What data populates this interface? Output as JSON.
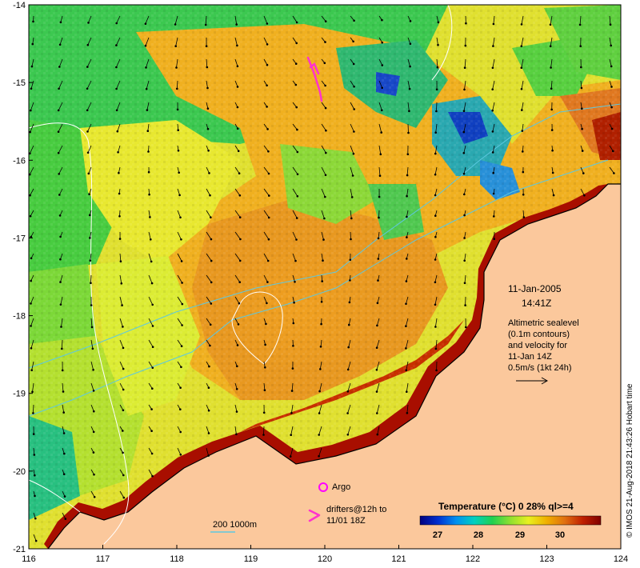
{
  "map": {
    "x_axis_ticks": [
      "116",
      "117",
      "118",
      "119",
      "120",
      "121",
      "122",
      "123",
      "124"
    ],
    "y_axis_ticks": [
      "-14",
      "-15",
      "-16",
      "-17",
      "-18",
      "-19",
      "-20",
      "-21"
    ],
    "lon_range": [
      116,
      124
    ],
    "lat_range": [
      -21,
      -14
    ],
    "colors": {
      "land": "#fbc89c",
      "coast_warm": "#a80e00",
      "contour": "#5ec8e0",
      "altimetry_contour": "#ffffff",
      "argo": "#ff00ff",
      "drifter": "#ff33cc"
    }
  },
  "annotation": {
    "date": "11-Jan-2005",
    "time": "14:41Z",
    "altimetry_lines": [
      "Altimetric sealevel",
      "(0.1m contours)",
      "and velocity for",
      "11-Jan 14Z",
      "0.5m/s (1kt 24h)"
    ]
  },
  "legend": {
    "argo_label": "Argo",
    "drifters_line1": "drifters@12h to",
    "drifters_line2": "11/01 18Z",
    "depth_label": "200  1000m",
    "colorbar_title": "Temperature (°C) 0 28% ql>=4",
    "colorbar_ticks": [
      "27",
      "28",
      "29",
      "30"
    ],
    "colormap": [
      "#000080",
      "#0030d0",
      "#0090f0",
      "#00d0c0",
      "#20d050",
      "#90e030",
      "#e8f020",
      "#f0b000",
      "#e07010",
      "#c02000",
      "#800000"
    ]
  },
  "credit": "© IMOS 21-Aug-2018 21:43:26 Hobart time"
}
